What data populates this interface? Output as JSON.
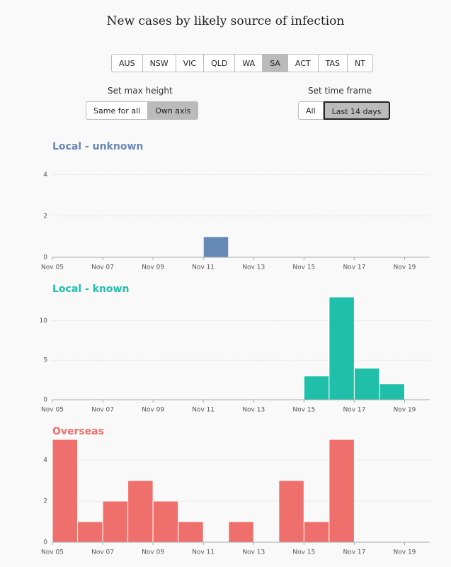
{
  "title": "New cases by likely source of infection",
  "states": [
    "AUS",
    "NSW",
    "VIC",
    "QLD",
    "WA",
    "SA",
    "ACT",
    "TAS",
    "NT"
  ],
  "max_height": {
    "label": "Set max height",
    "options": [
      "Same for all",
      "Own axis"
    ]
  },
  "time_frame": {
    "label": "Set time frame",
    "options": [
      "All",
      "Last 14 days"
    ]
  },
  "chart_data": [
    {
      "type": "bar",
      "title": "Local - unknown",
      "color": "#6688b5",
      "categories": [
        "Nov 05",
        null,
        "Nov 07",
        null,
        "Nov 09",
        null,
        "Nov 11",
        null,
        "Nov 13",
        null,
        "Nov 15",
        null,
        "Nov 17",
        null,
        "Nov 19"
      ],
      "values": [
        0,
        0,
        0,
        0,
        0,
        0,
        1,
        0,
        0,
        0,
        0,
        0,
        0,
        0,
        0
      ],
      "ylim": [
        0,
        4.5
      ],
      "yticks": [
        0,
        2,
        4
      ],
      "grid": true
    },
    {
      "type": "bar",
      "title": "Local - known",
      "color": "#20bfa9",
      "categories": [
        "Nov 05",
        null,
        "Nov 07",
        null,
        "Nov 09",
        null,
        "Nov 11",
        null,
        "Nov 13",
        null,
        "Nov 15",
        null,
        "Nov 17",
        null,
        "Nov 19"
      ],
      "values": [
        0,
        0,
        0,
        0,
        0,
        0,
        0,
        0,
        0,
        0,
        3,
        13,
        4,
        2,
        0
      ],
      "ylim": [
        0,
        13
      ],
      "yticks": [
        0,
        5,
        10
      ],
      "grid": true
    },
    {
      "type": "bar",
      "title": "Overseas",
      "color": "#ef6f6c",
      "categories": [
        "Nov 05",
        null,
        "Nov 07",
        null,
        "Nov 09",
        null,
        "Nov 11",
        null,
        "Nov 13",
        null,
        "Nov 15",
        null,
        "Nov 17",
        null,
        "Nov 19"
      ],
      "values": [
        5,
        1,
        2,
        3,
        2,
        1,
        0,
        1,
        0,
        3,
        1,
        5,
        0,
        0,
        0
      ],
      "ylim": [
        0,
        5
      ],
      "yticks": [
        0,
        2,
        4
      ],
      "grid": true
    }
  ]
}
